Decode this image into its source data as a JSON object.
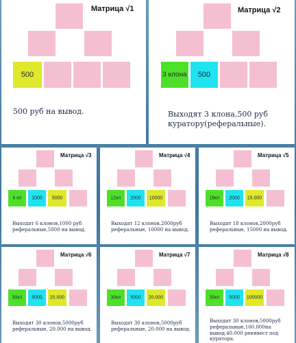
{
  "matrices": [
    {
      "title": "Матрица √1",
      "cells": [
        "500",
        "",
        "",
        ""
      ],
      "caption": "500 руб на вывод."
    },
    {
      "title": "Матрица √2",
      "cells": [
        "3 клона",
        "500",
        "",
        ""
      ],
      "caption": "Выходят 3 клона,500 руб куратору(реферальные)."
    },
    {
      "title": "Матрица √3",
      "cells": [
        "6 кл",
        "1000",
        "5000",
        ""
      ],
      "caption": "Выходят 6 клонов,1000 руб реферальные,5000 на вывод."
    },
    {
      "title": "Матрица √4",
      "cells": [
        "12кл",
        "2000",
        "10000",
        ""
      ],
      "caption": "Выходят 12 клонов,2000руб реферальные, 10000 на вывод."
    },
    {
      "title": "Матрица √5",
      "cells": [
        "18кл",
        "2000",
        "15.000",
        ""
      ],
      "caption": "Выходят 18 клонов,2000руб реферальные, 15000 на вывод."
    },
    {
      "title": "Матрица √6",
      "cells": [
        "30кл",
        "5000",
        "20.000",
        ""
      ],
      "caption": "Выходят 30 клонов,5000руб реферальные, 20.000 на вывод."
    },
    {
      "title": "Матрица √7",
      "cells": [
        "30кл",
        "5000",
        "20.000",
        ""
      ],
      "caption": "Выходят 30 клонов,5000руб реферальные, 20.000 на вывод."
    },
    {
      "title": "Матрица √8",
      "cells": [
        "30кл",
        "5000",
        "100000",
        ""
      ],
      "caption": "Выходят 30 клонов,5000руб реферальные,100.000на вывод,40.000 реинвест под куратора."
    }
  ]
}
